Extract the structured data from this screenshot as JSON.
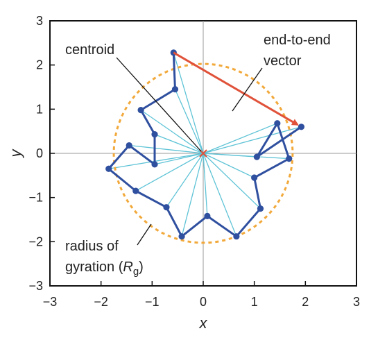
{
  "figure": {
    "x_axis_label": "x",
    "y_axis_label": "y",
    "x_ticks": [
      "−3",
      "−2",
      "−1",
      "0",
      "1",
      "2",
      "3"
    ],
    "y_ticks": [
      "3",
      "2",
      "1",
      "0",
      "−1",
      "−2",
      "−3"
    ],
    "annotations": {
      "centroid": "centroid",
      "end_to_end_line1": "end-to-end",
      "end_to_end_line2": "vector",
      "radius_line1": "radius of",
      "radius_line2_prefix": "gyration (",
      "radius_symbol": "R",
      "radius_subscript": "g",
      "radius_line2_suffix": ")"
    },
    "colors": {
      "chain": "#2f4f9f",
      "spokes": "#5ec3d6",
      "circle": "#f2a93b",
      "vector": "#e0523a",
      "centroid_mark": "#e0523a",
      "frame": "#111111",
      "zero_lines": "#9a9a9a"
    }
  },
  "chart_data": {
    "type": "scatter",
    "xlim": [
      -3,
      3
    ],
    "ylim": [
      -3,
      3
    ],
    "centroid": [
      0,
      0
    ],
    "radius_of_gyration": 1.75,
    "chain": [
      {
        "x": -0.58,
        "y": 2.28
      },
      {
        "x": -0.55,
        "y": 1.45
      },
      {
        "x": -1.22,
        "y": 0.98
      },
      {
        "x": -0.95,
        "y": 0.43
      },
      {
        "x": -0.95,
        "y": -0.25
      },
      {
        "x": -1.45,
        "y": 0.18
      },
      {
        "x": -1.85,
        "y": -0.35
      },
      {
        "x": -1.32,
        "y": -0.85
      },
      {
        "x": -0.72,
        "y": -1.22
      },
      {
        "x": -0.42,
        "y": -1.88
      },
      {
        "x": 0.08,
        "y": -1.42
      },
      {
        "x": 0.65,
        "y": -1.88
      },
      {
        "x": 1.12,
        "y": -1.25
      },
      {
        "x": 1.0,
        "y": -0.55
      },
      {
        "x": 1.68,
        "y": -0.12
      },
      {
        "x": 1.45,
        "y": 0.68
      },
      {
        "x": 1.05,
        "y": -0.08
      },
      {
        "x": 1.92,
        "y": 0.6
      }
    ],
    "end_to_end_vector": {
      "from": [
        -0.58,
        2.28
      ],
      "to": [
        1.92,
        0.6
      ]
    }
  }
}
